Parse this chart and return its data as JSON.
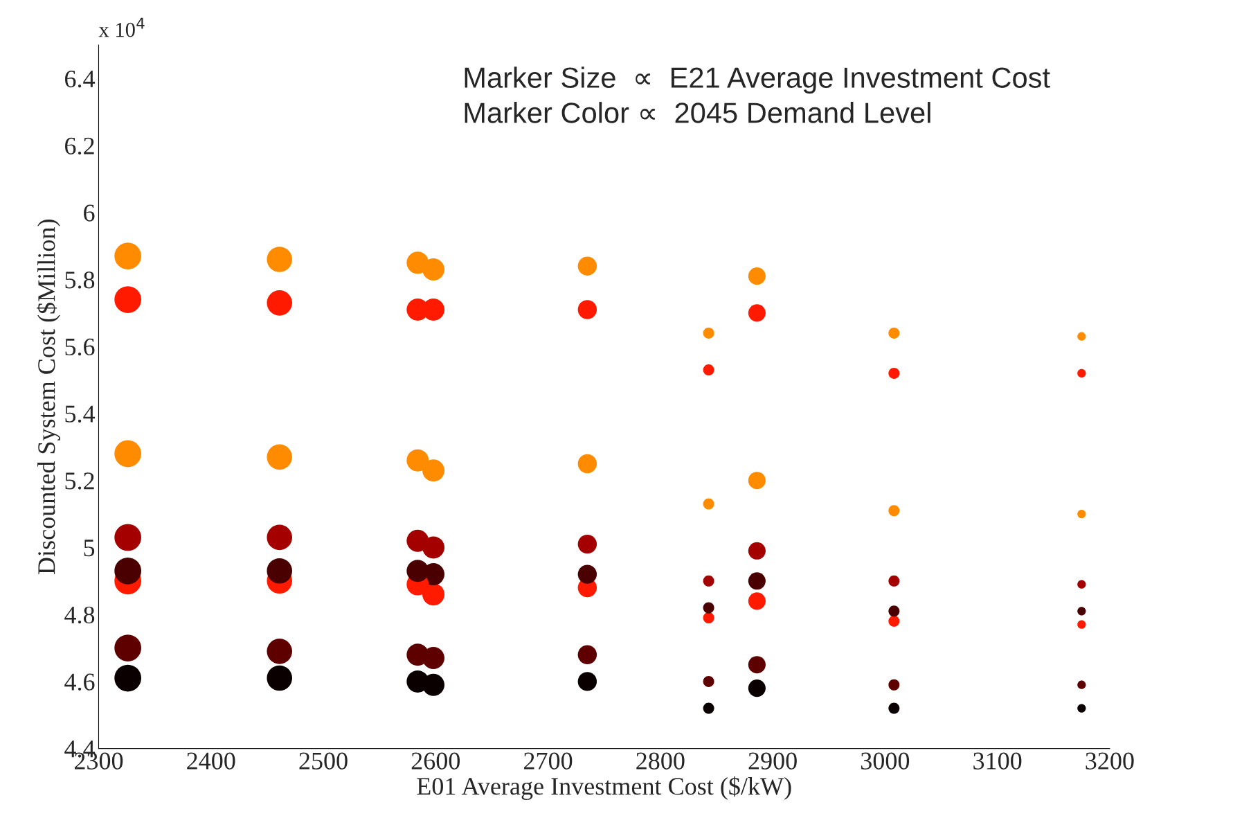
{
  "chart_data": {
    "type": "bubble",
    "xlabel": "E01 Average Investment Cost ($/kW)",
    "ylabel": "Discounted System Cost ($Million)",
    "annotations": [
      "x 10$^{4}$",
      "Marker Size  ∝  E21 Average Investment Cost",
      "Marker Color ∝  2045 Demand Level"
    ],
    "xlim": [
      2300,
      3200
    ],
    "xticks": [
      2300,
      2400,
      2500,
      2600,
      2700,
      2800,
      2900,
      3000,
      3100,
      3200
    ],
    "ylim": [
      4.4,
      6.5
    ],
    "yticks": [
      4.4,
      4.6,
      4.8,
      5,
      5.2,
      5.4,
      5.6,
      5.8,
      6,
      6.2,
      6.4
    ],
    "grid": false,
    "legend": false,
    "x": [
      2326,
      2326,
      2326,
      2326,
      2326,
      2326,
      2326,
      2326,
      2461,
      2461,
      2461,
      2461,
      2461,
      2461,
      2461,
      2461,
      2584,
      2584,
      2584,
      2584,
      2584,
      2584,
      2584,
      2584,
      2598,
      2598,
      2598,
      2598,
      2598,
      2598,
      2598,
      2598,
      2735,
      2735,
      2735,
      2735,
      2735,
      2735,
      2735,
      2735,
      2843,
      2843,
      2843,
      2843,
      2843,
      2843,
      2843,
      2843,
      2886,
      2886,
      2886,
      2886,
      2886,
      2886,
      2886,
      2886,
      3008,
      3008,
      3008,
      3008,
      3008,
      3008,
      3008,
      3008,
      3175,
      3175,
      3175,
      3175,
      3175,
      3175,
      3175,
      3175
    ],
    "values": [
      5.87,
      5.74,
      5.28,
      5.03,
      4.93,
      4.9,
      4.7,
      4.61,
      5.86,
      5.73,
      5.27,
      5.03,
      4.93,
      4.9,
      4.69,
      4.61,
      5.85,
      5.71,
      5.26,
      5.02,
      4.93,
      4.89,
      4.68,
      4.6,
      5.83,
      5.71,
      5.23,
      5.0,
      4.92,
      4.86,
      4.67,
      4.59,
      5.84,
      5.71,
      5.25,
      5.01,
      4.92,
      4.88,
      4.68,
      4.6,
      5.64,
      5.53,
      5.13,
      4.9,
      4.82,
      4.79,
      4.6,
      4.52,
      5.81,
      5.7,
      5.2,
      4.99,
      4.9,
      4.84,
      4.65,
      4.58,
      5.64,
      5.52,
      5.11,
      4.9,
      4.81,
      4.78,
      4.59,
      4.52,
      5.63,
      5.52,
      5.1,
      4.89,
      4.81,
      4.77,
      4.59,
      4.52
    ],
    "sizes": [
      1,
      1,
      1,
      1,
      1,
      1,
      1,
      1,
      0.89,
      0.89,
      0.89,
      0.89,
      0.89,
      0.89,
      0.89,
      0.89,
      0.68,
      0.68,
      0.68,
      0.68,
      0.68,
      0.68,
      0.68,
      0.68,
      0.68,
      0.68,
      0.68,
      0.68,
      0.68,
      0.68,
      0.68,
      0.68,
      0.5,
      0.5,
      0.5,
      0.5,
      0.5,
      0.5,
      0.5,
      0.5,
      0.17,
      0.17,
      0.17,
      0.17,
      0.17,
      0.17,
      0.17,
      0.17,
      0.42,
      0.42,
      0.42,
      0.42,
      0.42,
      0.42,
      0.42,
      0.42,
      0.17,
      0.17,
      0.17,
      0.17,
      0.17,
      0.17,
      0.17,
      0.17,
      0.1,
      0.1,
      0.1,
      0.1,
      0.1,
      0.1,
      0.1,
      0.1
    ],
    "colors": [
      "#ff8c00",
      "#ff1a00",
      "#ff8c00",
      "#a50000",
      "#4a0000",
      "#ff1a00",
      "#5e0000",
      "#0a0000",
      "#ff8c00",
      "#ff1a00",
      "#ff8c00",
      "#a50000",
      "#4a0000",
      "#ff1a00",
      "#5e0000",
      "#0a0000",
      "#ff8c00",
      "#ff1a00",
      "#ff8c00",
      "#a50000",
      "#4a0000",
      "#ff1a00",
      "#5e0000",
      "#0a0000",
      "#ff8c00",
      "#ff1a00",
      "#ff8c00",
      "#a50000",
      "#4a0000",
      "#ff1a00",
      "#5e0000",
      "#0a0000",
      "#ff8c00",
      "#ff1a00",
      "#ff8c00",
      "#a50000",
      "#4a0000",
      "#ff1a00",
      "#5e0000",
      "#0a0000",
      "#ff8c00",
      "#ff1a00",
      "#ff8c00",
      "#a50000",
      "#4a0000",
      "#ff1a00",
      "#5e0000",
      "#0a0000",
      "#ff8c00",
      "#ff1a00",
      "#ff8c00",
      "#a50000",
      "#4a0000",
      "#ff1a00",
      "#5e0000",
      "#0a0000",
      "#ff8c00",
      "#ff1a00",
      "#ff8c00",
      "#a50000",
      "#4a0000",
      "#ff1a00",
      "#5e0000",
      "#0a0000",
      "#ff8c00",
      "#ff1a00",
      "#ff8c00",
      "#a50000",
      "#4a0000",
      "#ff1a00",
      "#5e0000",
      "#0a0000"
    ]
  }
}
